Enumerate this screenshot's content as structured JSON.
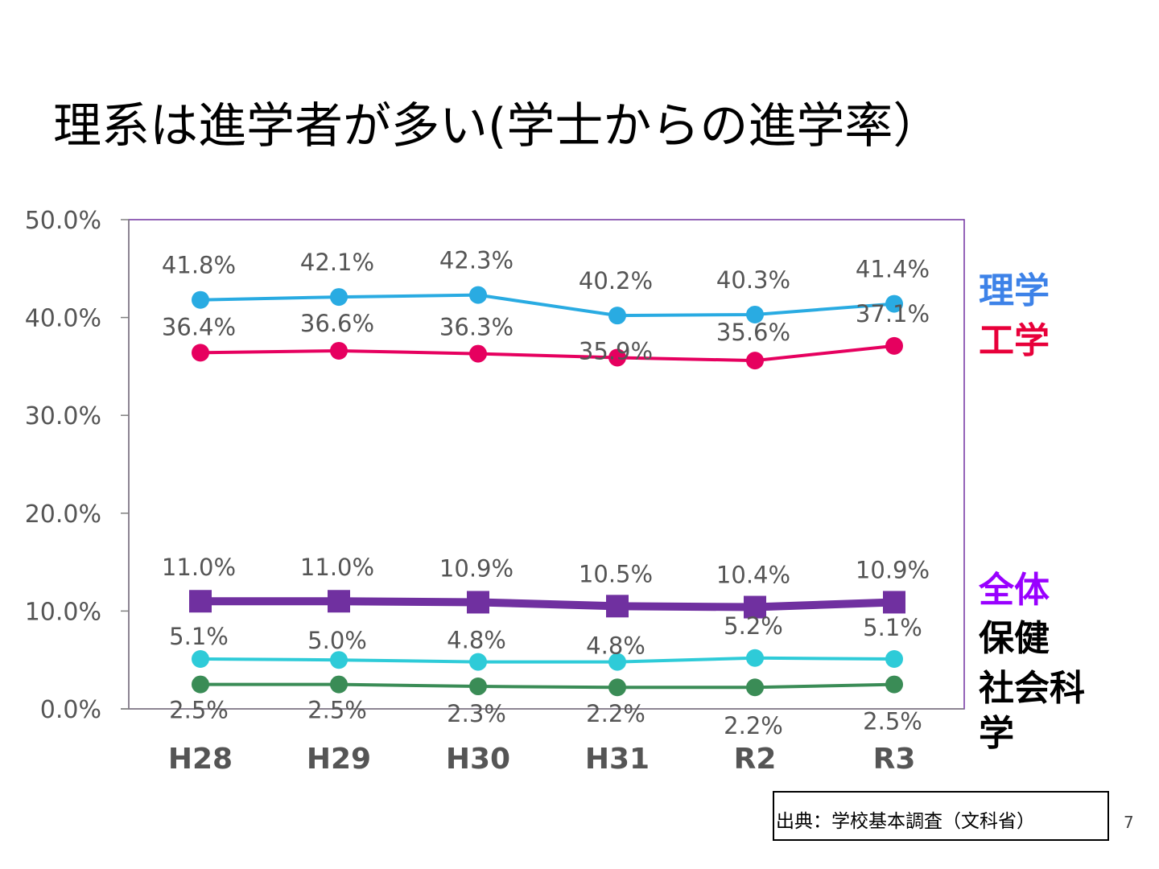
{
  "slide": {
    "title": "理系は進学者が多い(学士からの進学率）",
    "source": "出典：学校基本調査（文科省）",
    "page_number": "7"
  },
  "legend": [
    {
      "label": "理学",
      "color": "#3d82e8"
    },
    {
      "label": "工学",
      "color": "#e8003a"
    },
    {
      "label": "全体",
      "color": "#9900ff"
    },
    {
      "label": "保健",
      "color": "#000000"
    },
    {
      "label": "社会科学",
      "color": "#000000"
    }
  ],
  "chart_data": {
    "type": "line",
    "categories": [
      "H28",
      "H29",
      "H30",
      "H31",
      "R2",
      "R3"
    ],
    "ylim": [
      0,
      50
    ],
    "yticks": [
      "0.0%",
      "10.0%",
      "20.0%",
      "30.0%",
      "40.0%",
      "50.0%"
    ],
    "grid": false,
    "legend_position": "right",
    "series": [
      {
        "name": "理学",
        "color": "#29abe2",
        "marker": "circle",
        "values": [
          41.8,
          42.1,
          42.3,
          40.2,
          40.3,
          41.4
        ],
        "labels": [
          "41.8%",
          "42.1%",
          "42.3%",
          "40.2%",
          "40.3%",
          "41.4%"
        ]
      },
      {
        "name": "工学",
        "color": "#e6005f",
        "marker": "circle",
        "values": [
          36.4,
          36.6,
          36.3,
          35.9,
          35.6,
          37.1
        ],
        "labels": [
          "36.4%",
          "36.6%",
          "36.3%",
          "35.9%",
          "35.6%",
          "37.1%"
        ]
      },
      {
        "name": "全体",
        "color": "#7030a0",
        "marker": "square",
        "values": [
          11.0,
          11.0,
          10.9,
          10.5,
          10.4,
          10.9
        ],
        "labels": [
          "11.0%",
          "11.0%",
          "10.9%",
          "10.5%",
          "10.4%",
          "10.9%"
        ]
      },
      {
        "name": "保健",
        "color": "#2ecbd8",
        "marker": "circle",
        "values": [
          5.1,
          5.0,
          4.8,
          4.8,
          5.2,
          5.1
        ],
        "labels": [
          "5.1%",
          "5.0%",
          "4.8%",
          "4.8%",
          "5.2%",
          "5.1%"
        ]
      },
      {
        "name": "社会科学",
        "color": "#3a8c56",
        "marker": "circle",
        "values": [
          2.5,
          2.5,
          2.3,
          2.2,
          2.2,
          2.5
        ],
        "labels": [
          "2.5%",
          "2.5%",
          "2.3%",
          "2.2%",
          "2.2%",
          "2.5%"
        ]
      }
    ]
  }
}
